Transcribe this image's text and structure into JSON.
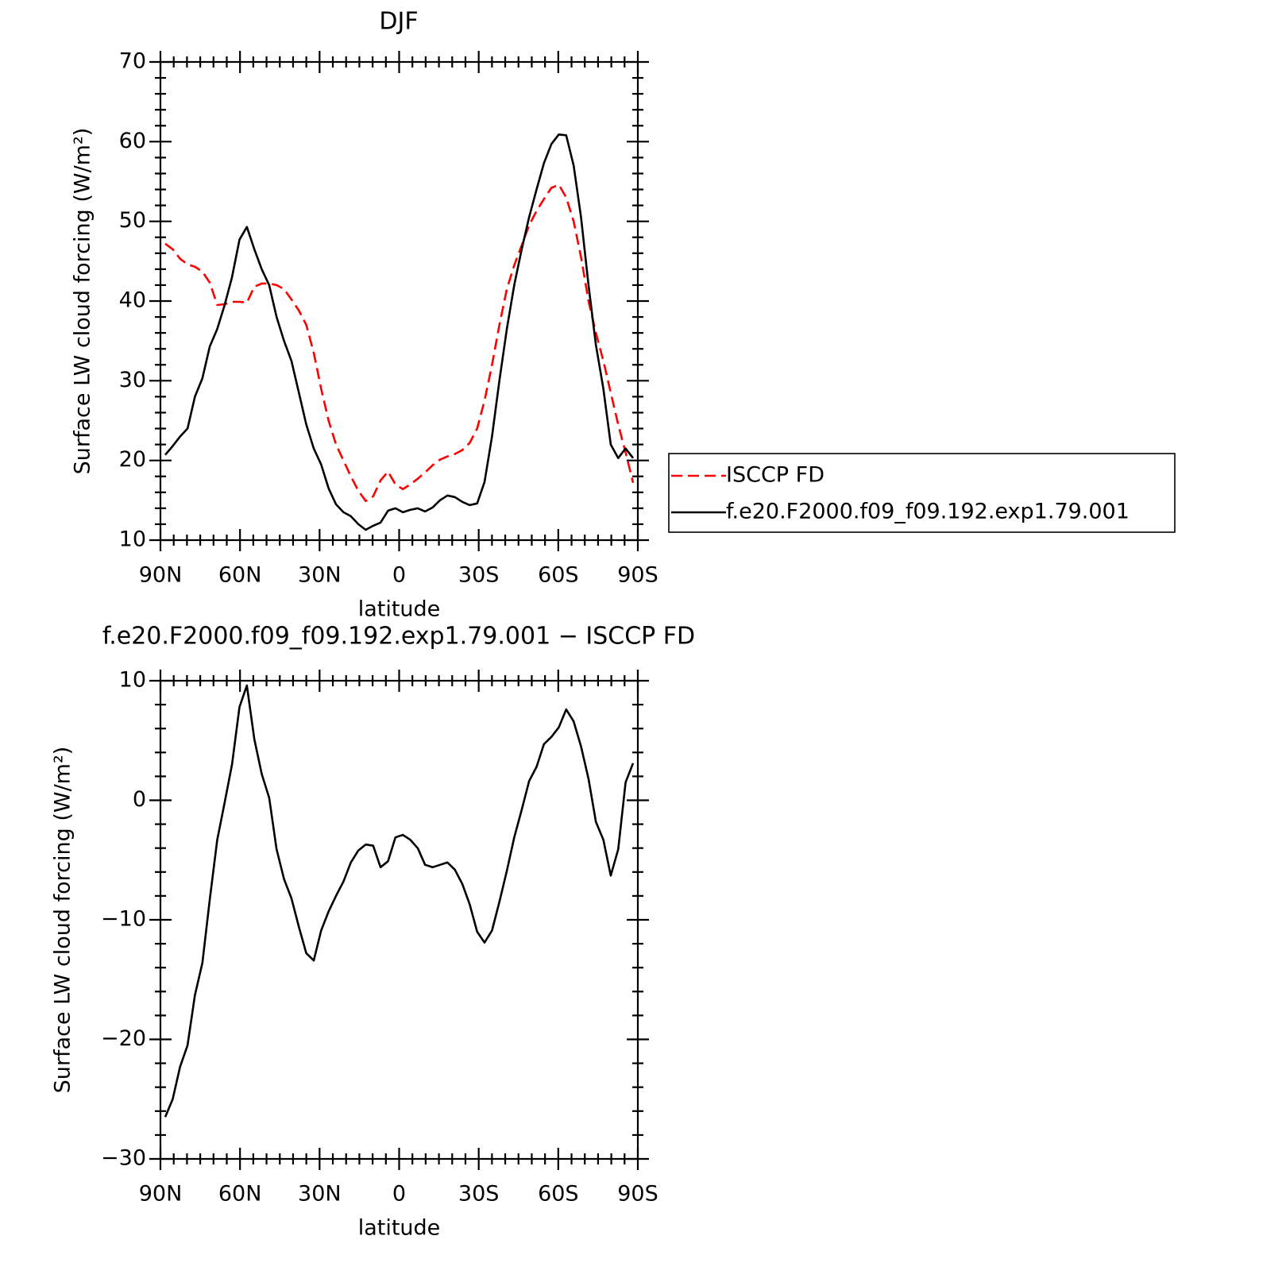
{
  "chart_data": [
    {
      "type": "line",
      "title": "DJF",
      "x_label": "latitude",
      "y_label": "Surface LW cloud forcing (W/m²)",
      "x": [
        88.2,
        85.4,
        82.6,
        79.8,
        77.0,
        74.2,
        71.4,
        68.6,
        65.8,
        63.0,
        60.2,
        57.4,
        54.6,
        51.8,
        49.0,
        46.2,
        43.4,
        40.6,
        37.8,
        35.0,
        32.2,
        29.4,
        26.6,
        23.8,
        21.0,
        18.2,
        15.4,
        12.6,
        9.8,
        7.0,
        4.2,
        1.4,
        -1.4,
        -4.2,
        -7.0,
        -9.8,
        -12.6,
        -15.4,
        -18.2,
        -21.0,
        -23.8,
        -26.6,
        -29.4,
        -32.2,
        -35.0,
        -37.8,
        -40.6,
        -43.4,
        -46.2,
        -49.0,
        -51.8,
        -54.6,
        -57.4,
        -60.2,
        -63.0,
        -65.8,
        -68.6,
        -71.4,
        -74.2,
        -77.0,
        -79.8,
        -82.6,
        -85.4,
        -88.2
      ],
      "xlim": [
        90,
        -90
      ],
      "xticks": [
        {
          "value": 90,
          "label": "90N"
        },
        {
          "value": 60,
          "label": "60N"
        },
        {
          "value": 30,
          "label": "30N"
        },
        0,
        {
          "value": -30,
          "label": "30S"
        },
        {
          "value": -60,
          "label": "60S"
        },
        {
          "value": -90,
          "label": "90S"
        }
      ],
      "ylim": [
        10,
        70
      ],
      "yticks": [
        10,
        20,
        30,
        40,
        50,
        60,
        70
      ],
      "legend": "outside right",
      "series": [
        {
          "name": "ISCCP FD",
          "color": "#ff0000",
          "dash": "dashed",
          "values": [
            47.2,
            46.5,
            45.3,
            44.6,
            44.3,
            43.7,
            42.3,
            39.5,
            39.6,
            39.9,
            39.9,
            39.8,
            41.8,
            42.2,
            42.2,
            42.0,
            41.5,
            40.2,
            38.8,
            37.0,
            33.5,
            29.0,
            25.0,
            22.0,
            20.0,
            18.0,
            16.2,
            14.9,
            15.5,
            17.5,
            18.6,
            17.0,
            16.4,
            17.0,
            17.7,
            18.5,
            19.4,
            20.1,
            20.5,
            20.8,
            21.3,
            22.2,
            24.0,
            27.5,
            32.0,
            37.0,
            41.5,
            44.5,
            47.0,
            49.5,
            51.3,
            52.8,
            54.2,
            54.6,
            53.0,
            50.0,
            45.5,
            40.0,
            36.0,
            32.5,
            28.5,
            24.5,
            21.0,
            17.2
          ]
        },
        {
          "name": "f.e20.F2000.f09_f09.192.exp1.79.001",
          "color": "#000000",
          "dash": "solid",
          "values": [
            20.7,
            21.8,
            23.0,
            24.0,
            28.0,
            30.3,
            34.3,
            36.5,
            39.5,
            43.0,
            47.7,
            49.3,
            46.5,
            44.0,
            42.0,
            38.0,
            35.0,
            32.5,
            28.5,
            24.5,
            21.5,
            19.5,
            16.5,
            14.5,
            13.5,
            13.0,
            12.0,
            11.3,
            11.8,
            12.2,
            13.7,
            14.0,
            13.5,
            13.8,
            14.0,
            13.6,
            14.1,
            15.0,
            15.6,
            15.4,
            14.8,
            14.4,
            14.6,
            17.3,
            23.0,
            30.0,
            36.5,
            42.0,
            46.5,
            50.5,
            54.0,
            57.3,
            59.7,
            60.9,
            60.8,
            57.0,
            50.5,
            42.0,
            34.5,
            29.0,
            22.0,
            20.3,
            21.5,
            20.3
          ]
        }
      ]
    },
    {
      "type": "line",
      "title": "f.e20.F2000.f09_f09.192.exp1.79.001 − ISCCP FD",
      "x_label": "latitude",
      "y_label": "Surface LW cloud forcing (W/m²)",
      "x": [
        88.2,
        85.4,
        82.6,
        79.8,
        77.0,
        74.2,
        71.4,
        68.6,
        65.8,
        63.0,
        60.2,
        57.4,
        54.6,
        51.8,
        49.0,
        46.2,
        43.4,
        40.6,
        37.8,
        35.0,
        32.2,
        29.4,
        26.6,
        23.8,
        21.0,
        18.2,
        15.4,
        12.6,
        9.8,
        7.0,
        4.2,
        1.4,
        -1.4,
        -4.2,
        -7.0,
        -9.8,
        -12.6,
        -15.4,
        -18.2,
        -21.0,
        -23.8,
        -26.6,
        -29.4,
        -32.2,
        -35.0,
        -37.8,
        -40.6,
        -43.4,
        -46.2,
        -49.0,
        -51.8,
        -54.6,
        -57.4,
        -60.2,
        -63.0,
        -65.8,
        -68.6,
        -71.4,
        -74.2,
        -77.0,
        -79.8,
        -82.6,
        -85.4,
        -88.2
      ],
      "xlim": [
        90,
        -90
      ],
      "xticks": [
        {
          "value": 90,
          "label": "90N"
        },
        {
          "value": 60,
          "label": "60N"
        },
        {
          "value": 30,
          "label": "30N"
        },
        0,
        {
          "value": -30,
          "label": "30S"
        },
        {
          "value": -60,
          "label": "60S"
        },
        {
          "value": -90,
          "label": "90S"
        }
      ],
      "ylim": [
        -30,
        10
      ],
      "yticks": [
        {
          "value": -30,
          "label": "−30"
        },
        {
          "value": -20,
          "label": "−20"
        },
        {
          "value": -10,
          "label": "−10"
        },
        0,
        10
      ],
      "series": [
        {
          "color": "#000000",
          "dash": "solid",
          "values": [
            -26.5,
            -25.0,
            -22.3,
            -20.5,
            -16.3,
            -13.6,
            -8.3,
            -3.3,
            -0.2,
            3.0,
            7.8,
            9.6,
            5.1,
            2.2,
            0.2,
            -4.1,
            -6.6,
            -8.2,
            -10.6,
            -12.8,
            -13.4,
            -10.9,
            -9.3,
            -8.0,
            -6.8,
            -5.2,
            -4.2,
            -3.7,
            -3.8,
            -5.6,
            -5.1,
            -3.1,
            -2.9,
            -3.3,
            -4.0,
            -5.4,
            -5.6,
            -5.4,
            -5.2,
            -5.8,
            -7.0,
            -8.7,
            -11.0,
            -11.9,
            -10.9,
            -8.5,
            -5.9,
            -3.1,
            -0.8,
            1.6,
            2.8,
            4.7,
            5.3,
            6.1,
            7.6,
            6.6,
            4.5,
            1.8,
            -1.8,
            -3.3,
            -6.3,
            -4.1,
            1.5,
            3.1
          ]
        }
      ]
    }
  ]
}
